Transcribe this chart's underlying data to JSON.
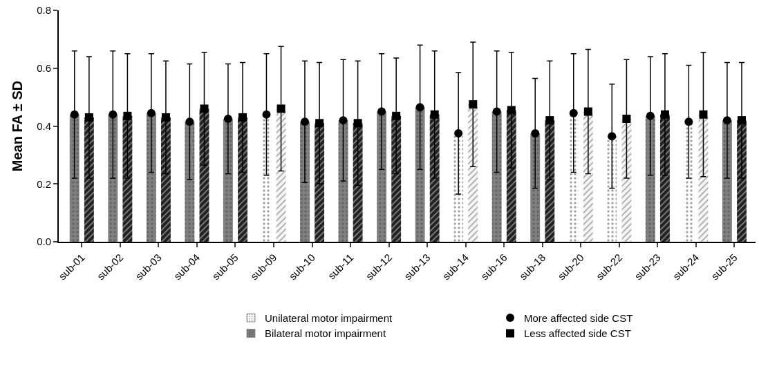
{
  "chart_data": {
    "type": "bar",
    "ylabel": "Mean FA ± SD",
    "categories": [
      "sub-01",
      "sub-02",
      "sub-03",
      "sub-04",
      "sub-05",
      "sub-09",
      "sub-10",
      "sub-11",
      "sub-12",
      "sub-13",
      "sub-14",
      "sub-16",
      "sub-18",
      "sub-20",
      "sub-22",
      "sub-23",
      "sub-24",
      "sub-25"
    ],
    "series": [
      {
        "colors": [
          "#808080",
          "#808080",
          "#808080",
          "#808080",
          "#808080",
          "#ffffff",
          "#808080",
          "#808080",
          "#808080",
          "#808080",
          "#ffffff",
          "#808080",
          "#808080",
          "#ffffff",
          "#ffffff",
          "#808080",
          "#ffffff",
          "#808080"
        ],
        "values": [
          0.44,
          0.44,
          0.445,
          0.415,
          0.425,
          0.44,
          0.415,
          0.42,
          0.45,
          0.465,
          0.375,
          0.45,
          0.375,
          0.445,
          0.365,
          0.435,
          0.415,
          0.42
        ]
      },
      {
        "colors": [
          "#222222",
          "#222222",
          "#222222",
          "#222222",
          "#222222",
          "#f5f5f5",
          "#222222",
          "#222222",
          "#222222",
          "#222222",
          "#f5f5f5",
          "#222222",
          "#222222",
          "#f5f5f5",
          "#f5f5f5",
          "#222222",
          "#f5f5f5",
          "#222222"
        ],
        "values": [
          0.43,
          0.435,
          0.43,
          0.46,
          0.43,
          0.46,
          0.41,
          0.41,
          0.435,
          0.44,
          0.475,
          0.455,
          0.42,
          0.45,
          0.425,
          0.44,
          0.44,
          0.42
        ]
      },
      {
        "type": "scatter",
        "name": "More affected side CST",
        "marker": "circle",
        "color": "#000000",
        "values": [
          0.44,
          0.44,
          0.445,
          0.415,
          0.425,
          0.44,
          0.415,
          0.42,
          0.45,
          0.465,
          0.375,
          0.45,
          0.375,
          0.445,
          0.365,
          0.435,
          0.415,
          0.42
        ],
        "errors": [
          0.22,
          0.22,
          0.205,
          0.2,
          0.19,
          0.21,
          0.21,
          0.21,
          0.2,
          0.215,
          0.21,
          0.21,
          0.19,
          0.205,
          0.18,
          0.205,
          0.195,
          0.2
        ]
      },
      {
        "type": "scatter",
        "name": "Less affected side CST",
        "marker": "square",
        "color": "#000000",
        "values": [
          0.43,
          0.435,
          0.43,
          0.46,
          0.43,
          0.46,
          0.41,
          0.41,
          0.435,
          0.44,
          0.475,
          0.455,
          0.42,
          0.45,
          0.425,
          0.44,
          0.44,
          0.42
        ],
        "errors": [
          0.21,
          0.215,
          0.195,
          0.195,
          0.19,
          0.215,
          0.21,
          0.215,
          0.2,
          0.22,
          0.215,
          0.2,
          0.205,
          0.215,
          0.205,
          0.21,
          0.215,
          0.2
        ]
      }
    ],
    "annotations": [
      "Unilateral motor impairment",
      "Bilateral motor impairment"
    ],
    "ylim": [
      0,
      0.8
    ],
    "yticks": [
      {
        "value": 0,
        "label": "0.0"
      },
      {
        "value": 0.2,
        "label": "0.2"
      },
      {
        "value": 0.4,
        "label": "0.4"
      },
      {
        "value": 0.6,
        "label": "0.6"
      },
      {
        "value": 0.8,
        "label": "0.8"
      }
    ],
    "legend": "bottom right"
  }
}
